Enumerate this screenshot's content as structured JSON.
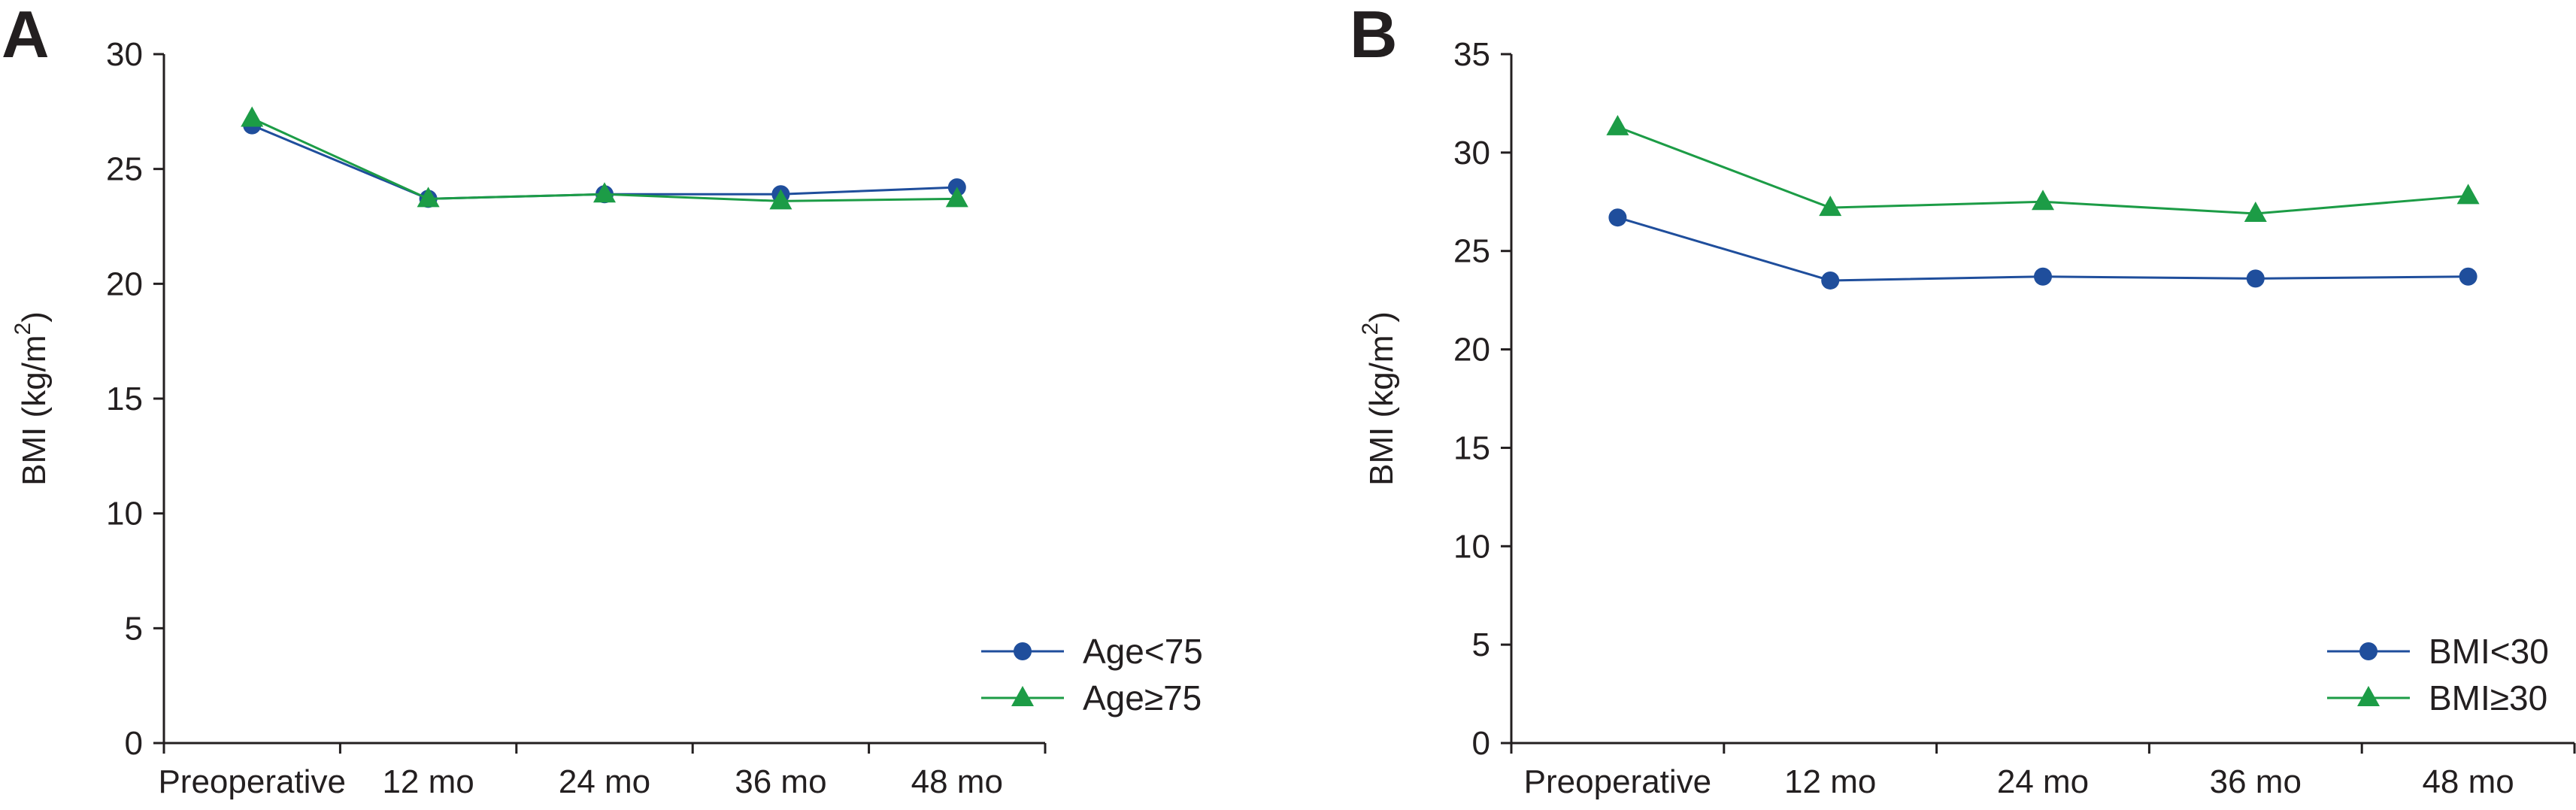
{
  "chart_data": [
    {
      "panel": "A",
      "type": "line",
      "title": "",
      "xlabel": "",
      "ylabel_main": "BMI (kg/m",
      "ylabel_sup": "2",
      "ylabel_tail": ")",
      "categories": [
        "Preoperative",
        "12 mo",
        "24 mo",
        "36 mo",
        "48 mo"
      ],
      "ylim": [
        0,
        30
      ],
      "yticks": [
        0,
        5,
        10,
        15,
        20,
        25,
        30
      ],
      "grid": false,
      "legend_position": "bottom-right",
      "series": [
        {
          "name": "Age<75",
          "marker": "circle",
          "color": "#1f4e9c",
          "values": [
            26.9,
            23.7,
            23.9,
            23.9,
            24.2
          ]
        },
        {
          "name": "Age≥75",
          "marker": "triangle",
          "color": "#1c9c46",
          "values": [
            27.2,
            23.7,
            23.9,
            23.6,
            23.7
          ]
        }
      ]
    },
    {
      "panel": "B",
      "type": "line",
      "title": "",
      "xlabel": "",
      "ylabel_main": "BMI (kg/m",
      "ylabel_sup": "2",
      "ylabel_tail": ")",
      "categories": [
        "Preoperative",
        "12 mo",
        "24 mo",
        "36 mo",
        "48 mo"
      ],
      "ylim": [
        0,
        35
      ],
      "yticks": [
        0,
        5,
        10,
        15,
        20,
        25,
        30,
        35
      ],
      "grid": false,
      "legend_position": "bottom-right",
      "series": [
        {
          "name": "BMI<30",
          "marker": "circle",
          "color": "#1f4e9c",
          "values": [
            26.7,
            23.5,
            23.7,
            23.6,
            23.7
          ]
        },
        {
          "name": "BMI≥30",
          "marker": "triangle",
          "color": "#1c9c46",
          "values": [
            31.3,
            27.2,
            27.5,
            26.9,
            27.8
          ]
        }
      ]
    }
  ]
}
